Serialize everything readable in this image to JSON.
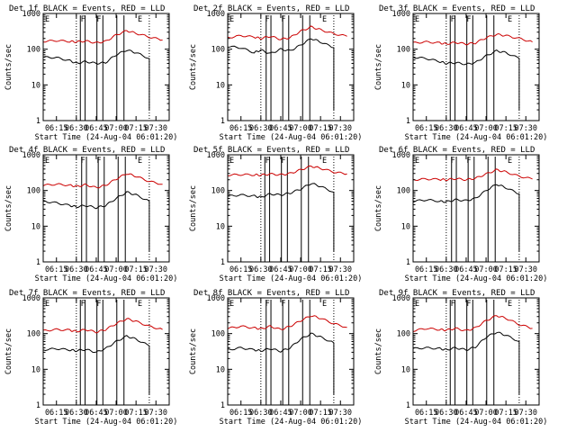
{
  "chart_data": [
    {
      "type": "line",
      "title": "Det 1f BLACK = Events, RED = LLD",
      "xlabel": "Start Time (24-Aug-04 06:01:20)",
      "ylabel": "Counts/sec",
      "yscale": "log",
      "ylim": [
        1,
        1000
      ],
      "xlim": [
        "06:05",
        "07:40"
      ],
      "x_ticks": [
        "06:15",
        "06:30",
        "06:45",
        "07:00",
        "07:15",
        "07:30"
      ],
      "y_ticks": [
        "1",
        "10",
        "100",
        "1000"
      ],
      "markers": [
        "F",
        "F",
        "E"
      ],
      "x": [
        "06:05",
        "06:15",
        "06:25",
        "06:30",
        "06:37",
        "06:45",
        "06:52",
        "07:00",
        "07:08",
        "07:15",
        "07:25",
        "07:35"
      ],
      "series": [
        {
          "name": "Events",
          "color": "#000000",
          "values": [
            60,
            58,
            48,
            40,
            45,
            40,
            42,
            70,
            95,
            80,
            55,
            null
          ]
        },
        {
          "name": "LLD",
          "color": "#cc0000",
          "values": [
            165,
            175,
            165,
            160,
            170,
            150,
            165,
            250,
            330,
            280,
            220,
            180
          ]
        }
      ]
    },
    {
      "type": "line",
      "title": "Det 2f BLACK = Events, RED = LLD",
      "xlabel": "Start Time (24-Aug-04 06:01:20)",
      "ylabel": "Counts/sec",
      "yscale": "log",
      "ylim": [
        1,
        1000
      ],
      "xlim": [
        "06:05",
        "07:40"
      ],
      "x_ticks": [
        "06:15",
        "06:30",
        "06:45",
        "07:00",
        "07:15",
        "07:30"
      ],
      "y_ticks": [
        "1",
        "10",
        "100",
        "1000"
      ],
      "markers": [
        "F",
        "F",
        "E"
      ],
      "x": [
        "06:05",
        "06:15",
        "06:25",
        "06:30",
        "06:37",
        "06:45",
        "06:52",
        "07:00",
        "07:08",
        "07:15",
        "07:25",
        "07:35"
      ],
      "series": [
        {
          "name": "Events",
          "color": "#000000",
          "values": [
            120,
            110,
            80,
            95,
            75,
            100,
            90,
            130,
            200,
            160,
            110,
            null
          ]
        },
        {
          "name": "LLD",
          "color": "#cc0000",
          "values": [
            210,
            240,
            220,
            200,
            230,
            190,
            210,
            320,
            420,
            350,
            270,
            230
          ]
        }
      ]
    },
    {
      "type": "line",
      "title": "Det 3f BLACK = Events, RED = LLD",
      "xlabel": "Start Time (24-Aug-04 06:01:20)",
      "ylabel": "Counts/sec",
      "yscale": "log",
      "ylim": [
        1,
        1000
      ],
      "xlim": [
        "06:05",
        "07:40"
      ],
      "x_ticks": [
        "06:15",
        "06:30",
        "06:45",
        "07:00",
        "07:15",
        "07:30"
      ],
      "y_ticks": [
        "1",
        "10",
        "100",
        "1000"
      ],
      "markers": [
        "F",
        "F",
        "E"
      ],
      "x": [
        "06:05",
        "06:15",
        "06:25",
        "06:30",
        "06:37",
        "06:45",
        "06:52",
        "07:00",
        "07:08",
        "07:15",
        "07:25",
        "07:35"
      ],
      "series": [
        {
          "name": "Events",
          "color": "#000000",
          "values": [
            60,
            55,
            45,
            40,
            42,
            38,
            42,
            65,
            90,
            80,
            55,
            null
          ]
        },
        {
          "name": "LLD",
          "color": "#cc0000",
          "values": [
            150,
            160,
            150,
            140,
            155,
            140,
            150,
            210,
            260,
            240,
            200,
            160
          ]
        }
      ]
    },
    {
      "type": "line",
      "title": "Det 4f BLACK = Events, RED = LLD",
      "xlabel": "Start Time (24-Aug-04 06:01:20)",
      "ylabel": "Counts/sec",
      "yscale": "log",
      "ylim": [
        1,
        1000
      ],
      "xlim": [
        "06:05",
        "07:40"
      ],
      "x_ticks": [
        "06:15",
        "06:30",
        "06:45",
        "07:00",
        "07:15",
        "07:30"
      ],
      "y_ticks": [
        "1",
        "10",
        "100",
        "1000"
      ],
      "markers": [
        "F",
        "F",
        "E"
      ],
      "x": [
        "06:05",
        "06:15",
        "06:25",
        "06:30",
        "06:37",
        "06:45",
        "06:52",
        "07:00",
        "07:08",
        "07:15",
        "07:25",
        "07:35"
      ],
      "series": [
        {
          "name": "Events",
          "color": "#000000",
          "values": [
            50,
            45,
            38,
            35,
            38,
            33,
            38,
            60,
            90,
            75,
            50,
            null
          ]
        },
        {
          "name": "LLD",
          "color": "#cc0000",
          "values": [
            140,
            150,
            140,
            130,
            145,
            120,
            140,
            210,
            300,
            250,
            180,
            150
          ]
        }
      ]
    },
    {
      "type": "line",
      "title": "Det 5f BLACK = Events, RED = LLD",
      "xlabel": "Start Time (24-Aug-04 06:01:20)",
      "ylabel": "Counts/sec",
      "yscale": "log",
      "ylim": [
        1,
        1000
      ],
      "xlim": [
        "06:05",
        "07:40"
      ],
      "x_ticks": [
        "06:15",
        "06:30",
        "06:45",
        "07:00",
        "07:15",
        "07:30"
      ],
      "y_ticks": [
        "1",
        "10",
        "100",
        "1000"
      ],
      "markers": [
        "F",
        "F",
        "E"
      ],
      "x": [
        "06:05",
        "06:15",
        "06:25",
        "06:30",
        "06:37",
        "06:45",
        "06:52",
        "07:00",
        "07:08",
        "07:15",
        "07:25",
        "07:35"
      ],
      "series": [
        {
          "name": "Events",
          "color": "#000000",
          "values": [
            70,
            75,
            70,
            65,
            80,
            75,
            85,
            110,
            160,
            130,
            90,
            null
          ]
        },
        {
          "name": "LLD",
          "color": "#cc0000",
          "values": [
            270,
            280,
            275,
            270,
            290,
            275,
            300,
            380,
            480,
            420,
            330,
            290
          ]
        }
      ]
    },
    {
      "type": "line",
      "title": "Det 6f BLACK = Events, RED = LLD",
      "xlabel": "Start Time (24-Aug-04 06:01:20)",
      "ylabel": "Counts/sec",
      "yscale": "log",
      "ylim": [
        1,
        1000
      ],
      "xlim": [
        "06:05",
        "07:40"
      ],
      "x_ticks": [
        "06:15",
        "06:30",
        "06:45",
        "07:00",
        "07:15",
        "07:30"
      ],
      "y_ticks": [
        "1",
        "10",
        "100",
        "1000"
      ],
      "markers": [
        "F",
        "F",
        "E"
      ],
      "x": [
        "06:05",
        "06:15",
        "06:25",
        "06:30",
        "06:37",
        "06:45",
        "06:52",
        "07:00",
        "07:08",
        "07:15",
        "07:25",
        "07:35"
      ],
      "series": [
        {
          "name": "Events",
          "color": "#000000",
          "values": [
            50,
            55,
            50,
            48,
            55,
            52,
            60,
            100,
            150,
            120,
            80,
            null
          ]
        },
        {
          "name": "LLD",
          "color": "#cc0000",
          "values": [
            200,
            210,
            205,
            200,
            215,
            200,
            220,
            290,
            380,
            330,
            250,
            210
          ]
        }
      ]
    },
    {
      "type": "line",
      "title": "Det 7f BLACK = Events, RED = LLD",
      "xlabel": "Start Time (24-Aug-04 06:01:20)",
      "ylabel": "Counts/sec",
      "yscale": "log",
      "ylim": [
        1,
        1000
      ],
      "xlim": [
        "06:05",
        "07:40"
      ],
      "x_ticks": [
        "06:15",
        "06:30",
        "06:45",
        "07:00",
        "07:15",
        "07:30"
      ],
      "y_ticks": [
        "1",
        "10",
        "100",
        "1000"
      ],
      "markers": [
        "F",
        "F",
        "E"
      ],
      "x": [
        "06:05",
        "06:15",
        "06:25",
        "06:30",
        "06:37",
        "06:45",
        "06:52",
        "07:00",
        "07:08",
        "07:15",
        "07:25",
        "07:35"
      ],
      "series": [
        {
          "name": "Events",
          "color": "#000000",
          "values": [
            35,
            38,
            35,
            33,
            36,
            30,
            38,
            60,
            85,
            70,
            45,
            null
          ]
        },
        {
          "name": "LLD",
          "color": "#cc0000",
          "values": [
            120,
            130,
            125,
            115,
            130,
            110,
            130,
            190,
            260,
            220,
            160,
            130
          ]
        }
      ]
    },
    {
      "type": "line",
      "title": "Det 8f BLACK = Events, RED = LLD",
      "xlabel": "Start Time (24-Aug-04 06:01:20)",
      "ylabel": "Counts/sec",
      "yscale": "log",
      "ylim": [
        1,
        1000
      ],
      "xlim": [
        "06:05",
        "07:40"
      ],
      "x_ticks": [
        "06:15",
        "06:30",
        "06:45",
        "07:00",
        "07:15",
        "07:30"
      ],
      "y_ticks": [
        "1",
        "10",
        "100",
        "1000"
      ],
      "markers": [
        "F",
        "F",
        "E"
      ],
      "x": [
        "06:05",
        "06:15",
        "06:25",
        "06:30",
        "06:37",
        "06:45",
        "06:52",
        "07:00",
        "07:08",
        "07:15",
        "07:25",
        "07:35"
      ],
      "series": [
        {
          "name": "Events",
          "color": "#000000",
          "values": [
            35,
            40,
            35,
            33,
            38,
            32,
            40,
            70,
            100,
            80,
            55,
            null
          ]
        },
        {
          "name": "LLD",
          "color": "#cc0000",
          "values": [
            140,
            160,
            145,
            135,
            160,
            130,
            160,
            230,
            320,
            270,
            190,
            150
          ]
        }
      ]
    },
    {
      "type": "line",
      "title": "Det 9f BLACK = Events, RED = LLD",
      "xlabel": "Start Time (24-Aug-04 06:01:20)",
      "ylabel": "Counts/sec",
      "yscale": "log",
      "ylim": [
        1,
        1000
      ],
      "xlim": [
        "06:05",
        "07:40"
      ],
      "x_ticks": [
        "06:15",
        "06:30",
        "06:45",
        "07:00",
        "07:15",
        "07:30"
      ],
      "y_ticks": [
        "1",
        "10",
        "100",
        "1000"
      ],
      "markers": [
        "F",
        "F",
        "E"
      ],
      "x": [
        "06:05",
        "06:15",
        "06:25",
        "06:30",
        "06:37",
        "06:45",
        "06:52",
        "07:00",
        "07:08",
        "07:15",
        "07:25",
        "07:35"
      ],
      "series": [
        {
          "name": "Events",
          "color": "#000000",
          "values": [
            38,
            40,
            38,
            35,
            40,
            35,
            42,
            80,
            110,
            90,
            60,
            null
          ]
        },
        {
          "name": "LLD",
          "color": "#cc0000",
          "values": [
            120,
            140,
            130,
            125,
            140,
            120,
            145,
            230,
            320,
            270,
            180,
            140
          ]
        }
      ]
    }
  ]
}
